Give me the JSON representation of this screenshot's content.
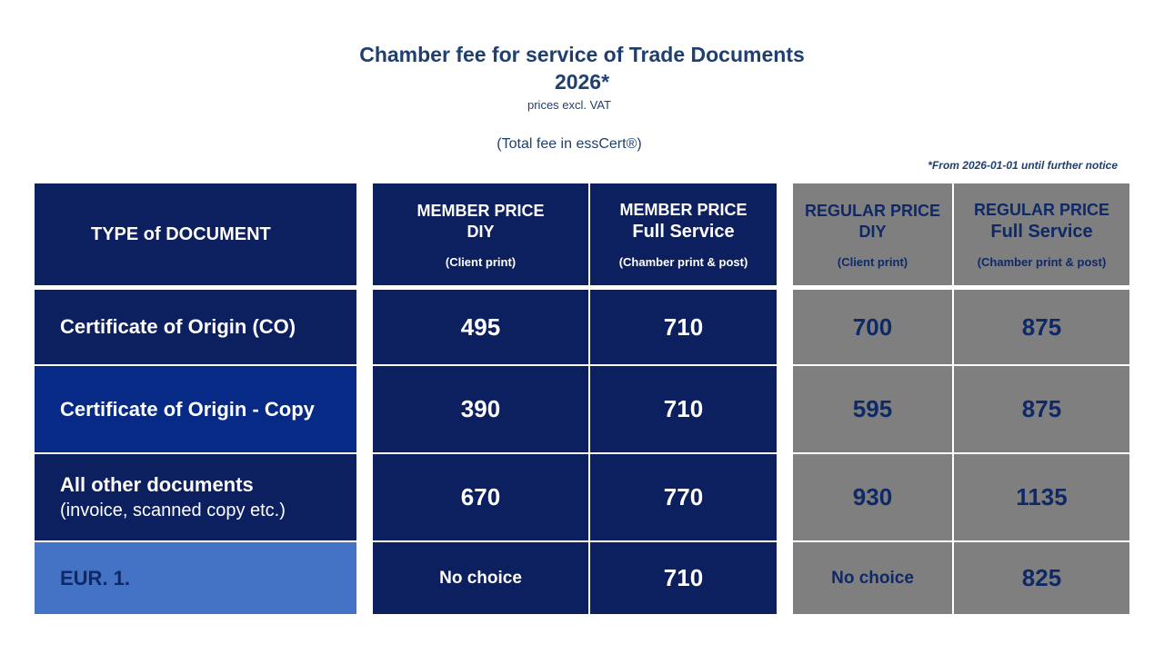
{
  "header": {
    "title": "Chamber fee for service of Trade Documents",
    "year": "2026*",
    "vat": "prices excl. VAT",
    "total": "(Total fee in essCert®)",
    "notice": "*From 2026-01-01 until further notice"
  },
  "table": {
    "columns": [
      {
        "title": "TYPE of DOCUMENT"
      },
      {
        "title": "MEMBER PRICE",
        "subtitle": "DIY",
        "note": "(Client print)"
      },
      {
        "title": "MEMBER PRICE",
        "subtitle": "Full Service",
        "note": "(Chamber print & post)"
      },
      {
        "title": "REGULAR PRICE",
        "subtitle": "DIY",
        "note": "(Client print)"
      },
      {
        "title": "REGULAR PRICE",
        "subtitle": "Full Service",
        "note": "(Chamber print & post)"
      }
    ],
    "rows": [
      {
        "label": "Certificate of Origin (CO)",
        "prices": [
          495,
          710,
          700,
          875
        ]
      },
      {
        "label": "Certificate of Origin - Copy",
        "prices": [
          390,
          710,
          595,
          875
        ]
      },
      {
        "label": "All other documents",
        "sublabel": "(invoice, scanned copy etc.)",
        "prices": [
          670,
          770,
          930,
          1135
        ]
      },
      {
        "label": "EUR. 1.",
        "prices": [
          "No choice",
          710,
          "No choice",
          825
        ]
      }
    ]
  }
}
